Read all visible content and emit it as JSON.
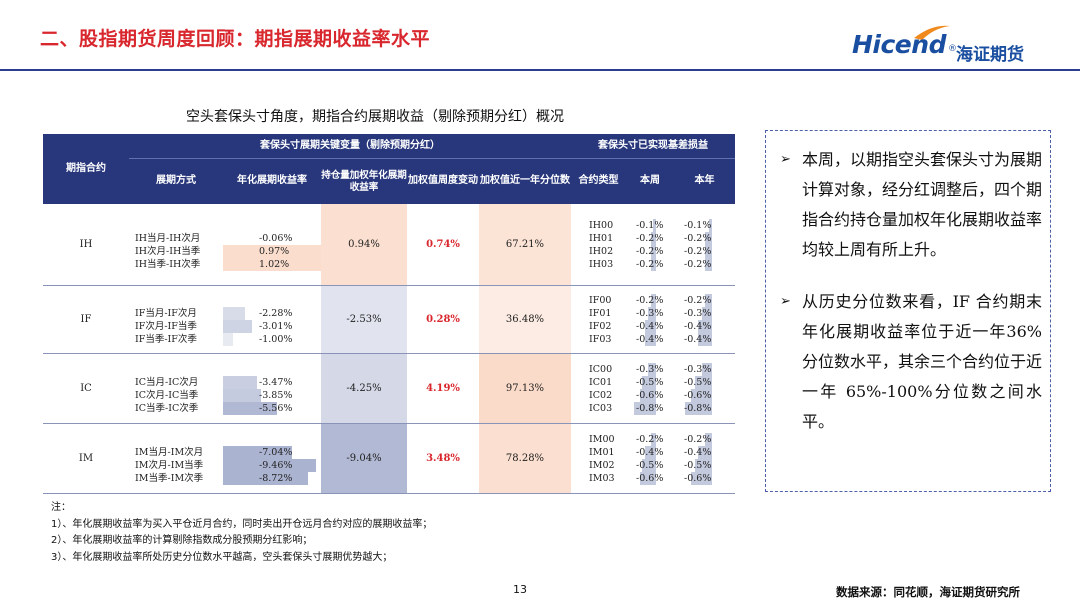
{
  "header": {
    "title": "二、股指期货周度回顾：期指展期收益率水平"
  },
  "logo": {
    "brand": "Hicend",
    "reg": "®",
    "cn": "海证期货"
  },
  "table_caption": "空头套保头寸角度，期指合约展期收益（剔除预期分红）概况",
  "table": {
    "headers": {
      "contract": "期指合约",
      "group1": "套保头寸展期关键变量（剔除预期分红）",
      "group2": "套保头寸已实现基差损益",
      "method": "展期方式",
      "annual": "年化展期收益率",
      "weighted": "持仓量加权年化展期收益率",
      "weekly_change": "加权值周度变动",
      "percentile": "加权值近一年分位数",
      "contract_type": "合约类型",
      "this_week": "本周",
      "this_year": "本年"
    },
    "colors": {
      "header_bg": "#28377c",
      "pos_fill": "#f6c4a4",
      "neg_fill": "#c4cade",
      "red": "#d9272e"
    },
    "groups": [
      {
        "name": "IH",
        "methods": [
          "IH当月-IH次月",
          "IH次月-IH当季",
          "IH当季-IH次季"
        ],
        "annual": [
          "-0.06%",
          "0.97%",
          "1.02%"
        ],
        "annual_num": [
          -0.06,
          0.97,
          1.02
        ],
        "weighted": "0.94%",
        "weighted_num": 0.94,
        "weekly": "0.74%",
        "percentile": "67.21%",
        "percentile_num": 67.21,
        "contracts": [
          "IH00",
          "IH01",
          "IH02",
          "IH03"
        ],
        "week": [
          "-0.1%",
          "-0.2%",
          "-0.2%",
          "-0.2%"
        ],
        "week_num": [
          -0.1,
          -0.2,
          -0.2,
          -0.2
        ],
        "year": [
          "-0.1%",
          "-0.2%",
          "-0.2%",
          "-0.2%"
        ],
        "year_num": [
          -0.1,
          -0.2,
          -0.2,
          -0.2
        ]
      },
      {
        "name": "IF",
        "methods": [
          "IF当月-IF次月",
          "IF次月-IF当季",
          "IF当季-IF次季"
        ],
        "annual": [
          "-2.28%",
          "-3.01%",
          "-1.00%"
        ],
        "annual_num": [
          -2.28,
          -3.01,
          -1.0
        ],
        "weighted": "-2.53%",
        "weighted_num": -2.53,
        "weekly": "0.28%",
        "percentile": "36.48%",
        "percentile_num": 36.48,
        "contracts": [
          "IF00",
          "IF01",
          "IF02",
          "IF03"
        ],
        "week": [
          "-0.2%",
          "-0.3%",
          "-0.4%",
          "-0.4%"
        ],
        "week_num": [
          -0.2,
          -0.3,
          -0.4,
          -0.4
        ],
        "year": [
          "-0.2%",
          "-0.3%",
          "-0.4%",
          "-0.4%"
        ],
        "year_num": [
          -0.2,
          -0.3,
          -0.4,
          -0.4
        ]
      },
      {
        "name": "IC",
        "methods": [
          "IC当月-IC次月",
          "IC次月-IC当季",
          "IC当季-IC次季"
        ],
        "annual": [
          "-3.47%",
          "-3.85%",
          "-5.56%"
        ],
        "annual_num": [
          -3.47,
          -3.85,
          -5.56
        ],
        "weighted": "-4.25%",
        "weighted_num": -4.25,
        "weekly": "4.19%",
        "percentile": "97.13%",
        "percentile_num": 97.13,
        "contracts": [
          "IC00",
          "IC01",
          "IC02",
          "IC03"
        ],
        "week": [
          "-0.3%",
          "-0.5%",
          "-0.6%",
          "-0.8%"
        ],
        "week_num": [
          -0.3,
          -0.5,
          -0.6,
          -0.8
        ],
        "year": [
          "-0.3%",
          "-0.5%",
          "-0.6%",
          "-0.8%"
        ],
        "year_num": [
          -0.3,
          -0.5,
          -0.6,
          -0.8
        ]
      },
      {
        "name": "IM",
        "methods": [
          "IM当月-IM次月",
          "IM次月-IM当季",
          "IM当季-IM次季"
        ],
        "annual": [
          "-7.04%",
          "-9.46%",
          "-8.72%"
        ],
        "annual_num": [
          -7.04,
          -9.46,
          -8.72
        ],
        "weighted": "-9.04%",
        "weighted_num": -9.04,
        "weekly": "3.48%",
        "percentile": "78.28%",
        "percentile_num": 78.28,
        "contracts": [
          "IM00",
          "IM01",
          "IM02",
          "IM03"
        ],
        "week": [
          "-0.2%",
          "-0.4%",
          "-0.5%",
          "-0.6%"
        ],
        "week_num": [
          -0.2,
          -0.4,
          -0.5,
          -0.6
        ],
        "year": [
          "-0.2%",
          "-0.4%",
          "-0.5%",
          "-0.6%"
        ],
        "year_num": [
          -0.2,
          -0.4,
          -0.5,
          -0.6
        ]
      }
    ]
  },
  "side_panel": {
    "bullet_symbol": "➢",
    "bullets": [
      "本周，以期指空头套保头寸为展期计算对象，经分红调整后，四个期指合约持仓量加权年化展期收益率均较上周有所上升。",
      "从历史分位数来看，IF 合约期末年化展期收益率位于近一年36%分位数水平，其余三个合约位于近一年 65%-100%分位数之间水平。"
    ]
  },
  "notes": [
    "注：",
    "1）、年化展期收益率为买入平仓近月合约，同时卖出开仓远月合约对应的展期收益率；",
    "2）、年化展期收益率的计算剔除指数成分股预期分红影响；",
    "3）、年化展期收益率所处历史分位数水平越高，空头套保头寸展期优势越大；"
  ],
  "footer": {
    "page_number": "13",
    "source": "数据来源：同花顺，海证期货研究所"
  }
}
